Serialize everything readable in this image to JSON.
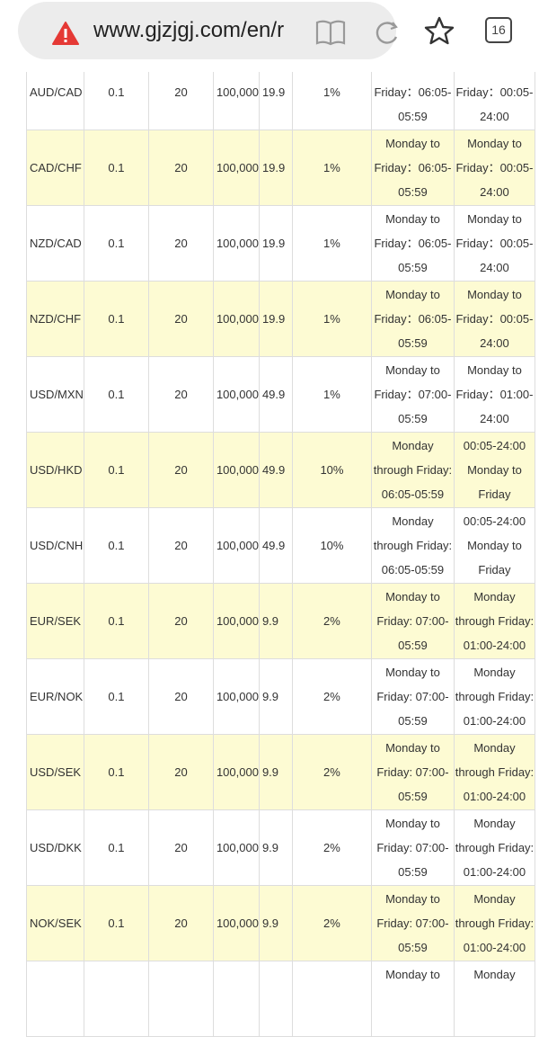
{
  "browser": {
    "url": "www.gjzjgj.com/en/r",
    "tab_count": "16",
    "security_icon": "warning-triangle-icon",
    "accent_warning": "#e53935"
  },
  "table": {
    "highlight_color": "#fdfbd3",
    "rows": [
      {
        "pair": "AUD/CAD",
        "c1": "0.1",
        "c2": "20",
        "c3": "100,000",
        "c4": "19.9",
        "c5": "1%",
        "trade": [
          "",
          "Friday：06:05-",
          "05:59"
        ],
        "hours": [
          "",
          "Friday：00:05-",
          "24:00"
        ],
        "alt": false
      },
      {
        "pair": "CAD/CHF",
        "c1": "0.1",
        "c2": "20",
        "c3": "100,000",
        "c4": "19.9",
        "c5": "1%",
        "trade": [
          "Monday to",
          "Friday：06:05-",
          "05:59"
        ],
        "hours": [
          "Monday to",
          "Friday：00:05-",
          "24:00"
        ],
        "alt": true
      },
      {
        "pair": "NZD/CAD",
        "c1": "0.1",
        "c2": "20",
        "c3": "100,000",
        "c4": "19.9",
        "c5": "1%",
        "trade": [
          "Monday to",
          "Friday：06:05-",
          "05:59"
        ],
        "hours": [
          "Monday to",
          "Friday：00:05-",
          "24:00"
        ],
        "alt": false
      },
      {
        "pair": "NZD/CHF",
        "c1": "0.1",
        "c2": "20",
        "c3": "100,000",
        "c4": "19.9",
        "c5": "1%",
        "trade": [
          "Monday to",
          "Friday：06:05-",
          "05:59"
        ],
        "hours": [
          "Monday to",
          "Friday：00:05-",
          "24:00"
        ],
        "alt": true
      },
      {
        "pair": "USD/MXN",
        "c1": "0.1",
        "c2": "20",
        "c3": "100,000",
        "c4": "49.9",
        "c5": "1%",
        "trade": [
          "Monday to",
          "Friday：07:00-",
          "05:59"
        ],
        "hours": [
          "Monday to",
          "Friday：01:00-",
          "24:00"
        ],
        "alt": false
      },
      {
        "pair": "USD/HKD",
        "c1": "0.1",
        "c2": "20",
        "c3": "100,000",
        "c4": "49.9",
        "c5": "10%",
        "trade": [
          "Monday",
          "through Friday:",
          "06:05-05:59"
        ],
        "hours": [
          "00:05-24:00",
          "Monday to",
          "Friday"
        ],
        "alt": true
      },
      {
        "pair": "USD/CNH",
        "c1": "0.1",
        "c2": "20",
        "c3": "100,000",
        "c4": "49.9",
        "c5": "10%",
        "trade": [
          "Monday",
          "through Friday:",
          "06:05-05:59"
        ],
        "hours": [
          "00:05-24:00",
          "Monday to",
          "Friday"
        ],
        "alt": false
      },
      {
        "pair": "EUR/SEK",
        "c1": "0.1",
        "c2": "20",
        "c3": "100,000",
        "c4": "9.9",
        "c5": "2%",
        "trade": [
          "Monday to",
          "Friday: 07:00-",
          "05:59"
        ],
        "hours": [
          "Monday",
          "through Friday:",
          "01:00-24:00"
        ],
        "alt": true
      },
      {
        "pair": "EUR/NOK",
        "c1": "0.1",
        "c2": "20",
        "c3": "100,000",
        "c4": "9.9",
        "c5": "2%",
        "trade": [
          "Monday to",
          "Friday: 07:00-",
          "05:59"
        ],
        "hours": [
          "Monday",
          "through Friday:",
          "01:00-24:00"
        ],
        "alt": false
      },
      {
        "pair": "USD/SEK",
        "c1": "0.1",
        "c2": "20",
        "c3": "100,000",
        "c4": "9.9",
        "c5": "2%",
        "trade": [
          "Monday to",
          "Friday: 07:00-",
          "05:59"
        ],
        "hours": [
          "Monday",
          "through Friday:",
          "01:00-24:00"
        ],
        "alt": true
      },
      {
        "pair": "USD/DKK",
        "c1": "0.1",
        "c2": "20",
        "c3": "100,000",
        "c4": "9.9",
        "c5": "2%",
        "trade": [
          "Monday to",
          "Friday: 07:00-",
          "05:59"
        ],
        "hours": [
          "Monday",
          "through Friday:",
          "01:00-24:00"
        ],
        "alt": false
      },
      {
        "pair": "NOK/SEK",
        "c1": "0.1",
        "c2": "20",
        "c3": "100,000",
        "c4": "9.9",
        "c5": "2%",
        "trade": [
          "Monday to",
          "Friday: 07:00-",
          "05:59"
        ],
        "hours": [
          "Monday",
          "through Friday:",
          "01:00-24:00"
        ],
        "alt": true
      },
      {
        "pair": "",
        "c1": "",
        "c2": "",
        "c3": "",
        "c4": "",
        "c5": "",
        "trade": [
          "Monday to",
          "",
          ""
        ],
        "hours": [
          "Monday",
          "",
          ""
        ],
        "alt": false
      }
    ]
  }
}
